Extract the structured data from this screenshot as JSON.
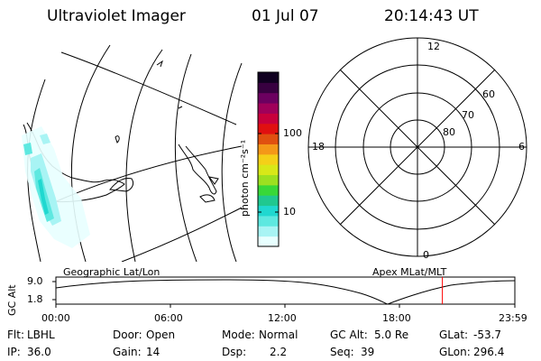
{
  "header": {
    "title": "Ultraviolet Imager",
    "date": "01 Jul 07",
    "time": "20:14:43 UT"
  },
  "map": {
    "label": "Geographic Lat/Lon",
    "style": "polar stereographic outline of South America / Antarctic Peninsula with UV aurora pixels"
  },
  "colorbar": {
    "unit_label": "photon cm⁻²s⁻¹",
    "ticks": [
      "100",
      "10"
    ],
    "colors": [
      "#e8ffff",
      "#a8f4f4",
      "#5ee8e0",
      "#20d8d0",
      "#20c890",
      "#38d838",
      "#9ce020",
      "#d8e818",
      "#f4d018",
      "#f49818",
      "#e05010",
      "#e01010",
      "#c8003c",
      "#a0005a",
      "#6c0060",
      "#380040",
      "#100020"
    ]
  },
  "polar_plot": {
    "label": "Apex MLat/MLT",
    "hour_labels": {
      "top": "12",
      "bottom": "0",
      "left": "18",
      "right": "6"
    },
    "lat_labels": [
      "60",
      "70",
      "80"
    ]
  },
  "timeline": {
    "axis_label": "GC Alt",
    "y_ticks": [
      "9.0",
      "1.8"
    ],
    "x_ticks": [
      "00:00",
      "06:00",
      "12:00",
      "18:00",
      "23:59"
    ],
    "current_time_marker_color": "#ff0000",
    "current_time_fraction": 0.842
  },
  "info": {
    "row1": [
      {
        "label": "Flt:",
        "value": "LBHL"
      },
      {
        "label": "Door:",
        "value": "Open"
      },
      {
        "label": "Mode:",
        "value": "Normal"
      },
      {
        "label": "GC Alt:",
        "value": "5.0 Re"
      },
      {
        "label": "GLat:",
        "value": "-53.7"
      }
    ],
    "row2": [
      {
        "label": "IP:",
        "value": "36.0"
      },
      {
        "label": "Gain:",
        "value": "14"
      },
      {
        "label": "Dsp:",
        "value": "2.2"
      },
      {
        "label": "Seq:",
        "value": "39"
      },
      {
        "label": "GLon:",
        "value": "296.4"
      }
    ]
  }
}
